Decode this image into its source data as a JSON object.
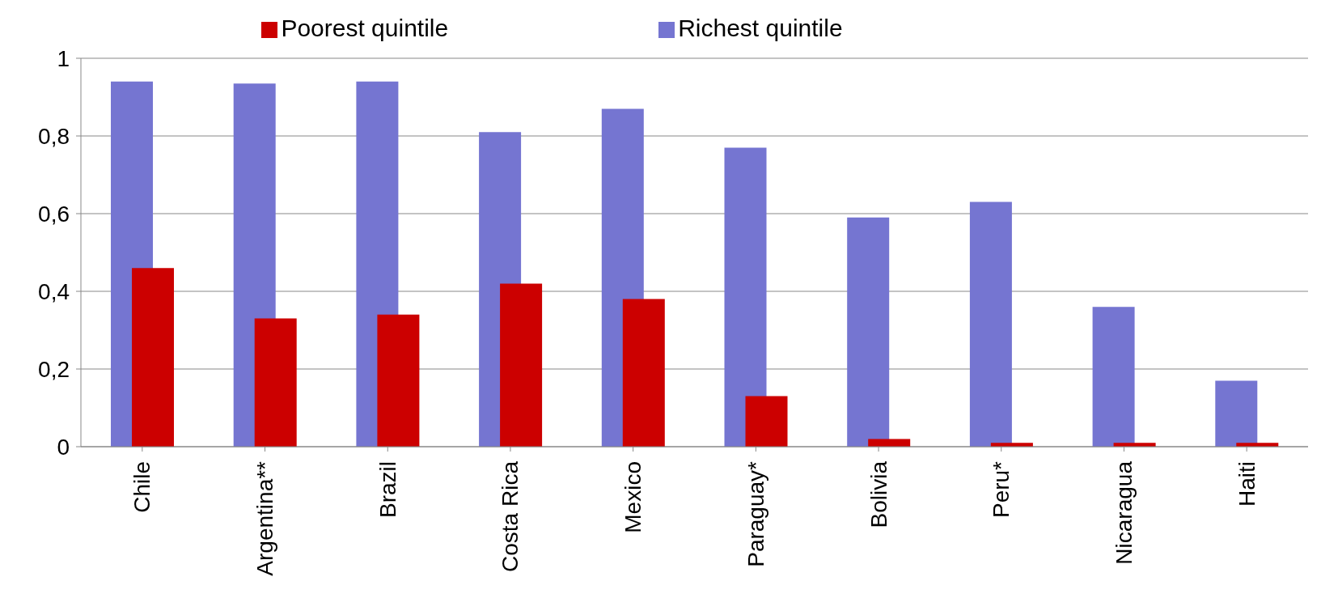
{
  "chart_data": {
    "type": "bar",
    "categories": [
      "Chile",
      "Argentina**",
      "Brazil",
      "Costa Rica",
      "Mexico",
      "Paraguay*",
      "Bolivia",
      "Peru*",
      "Nicaragua",
      "Haiti"
    ],
    "series": [
      {
        "name": "Richest quintile",
        "color": "#7575d1",
        "values": [
          0.94,
          0.935,
          0.94,
          0.81,
          0.87,
          0.77,
          0.59,
          0.63,
          0.36,
          0.17
        ]
      },
      {
        "name": "Poorest quintile",
        "color": "#cc0000",
        "values": [
          0.46,
          0.33,
          0.34,
          0.42,
          0.38,
          0.13,
          0.02,
          0.01,
          0.01,
          0.01
        ]
      }
    ],
    "ylim": [
      0,
      1
    ],
    "yticks": [
      0,
      {
        "value": 0.2,
        "label": "0,2"
      },
      {
        "value": 0.4,
        "label": "0,4"
      },
      {
        "value": 0.6,
        "label": "0,6"
      },
      {
        "value": 0.8,
        "label": "0,8"
      },
      1
    ],
    "grid": "y",
    "legend": "top"
  }
}
